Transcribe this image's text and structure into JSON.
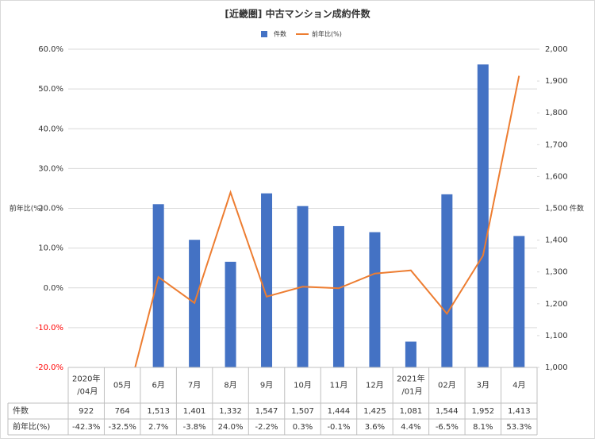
{
  "chart_data": {
    "type": "bar",
    "title": "[近畿圏] 中古マンション成約件数",
    "categories": [
      "2020年\n/04月",
      "05月",
      "6月",
      "7月",
      "8月",
      "9月",
      "10月",
      "11月",
      "12月",
      "2021年\n/01月",
      "02月",
      "3月",
      "4月"
    ],
    "series": [
      {
        "name": "件数",
        "color": "#4472c4",
        "axis": "y2",
        "values": [
          922,
          764,
          1513,
          1401,
          1332,
          1547,
          1507,
          1444,
          1425,
          1081,
          1544,
          1952,
          1413
        ],
        "value_labels": [
          "922",
          "764",
          "1,513",
          "1,401",
          "1,332",
          "1,547",
          "1,507",
          "1,444",
          "1,425",
          "1,081",
          "1,544",
          "1,952",
          "1,413"
        ]
      },
      {
        "name": "前年比(%)",
        "color": "#ed7d31",
        "type": "line",
        "values": [
          -42.3,
          -32.5,
          2.7,
          -3.8,
          24.0,
          -2.2,
          0.3,
          -0.1,
          3.6,
          4.4,
          -6.5,
          8.1,
          53.3
        ],
        "value_labels": [
          "-42.3%",
          "-32.5%",
          "2.7%",
          "-3.8%",
          "24.0%",
          "-2.2%",
          "0.3%",
          "-0.1%",
          "3.6%",
          "4.4%",
          "-6.5%",
          "8.1%",
          "53.3%"
        ]
      }
    ],
    "y_label": "前年比(%)",
    "y2_label": "件数",
    "ylim": [
      -20,
      60
    ],
    "yticks": [
      {
        "value": -20,
        "label": "-20.0%"
      },
      {
        "value": -10,
        "label": "-10.0%"
      },
      {
        "value": 0,
        "label": "0.0%"
      },
      {
        "value": 10,
        "label": "10.0%"
      },
      {
        "value": 20,
        "label": "20.0%"
      },
      {
        "value": 30,
        "label": "30.0%"
      },
      {
        "value": 40,
        "label": "40.0%"
      },
      {
        "value": 50,
        "label": "50.0%"
      },
      {
        "value": 60,
        "label": "60.0%"
      }
    ],
    "y2lim": [
      1000,
      2000
    ],
    "y2ticks": [
      {
        "value": 1000,
        "label": "1,000"
      },
      {
        "value": 1100,
        "label": "1,100"
      },
      {
        "value": 1200,
        "label": "1,200"
      },
      {
        "value": 1300,
        "label": "1,300"
      },
      {
        "value": 1400,
        "label": "1,400"
      },
      {
        "value": 1500,
        "label": "1,500"
      },
      {
        "value": 1600,
        "label": "1,600"
      },
      {
        "value": 1700,
        "label": "1,700"
      },
      {
        "value": 1800,
        "label": "1,800"
      },
      {
        "value": 1900,
        "label": "1,900"
      },
      {
        "value": 2000,
        "label": "2,000"
      }
    ],
    "negative_tick_color": "#ff0000",
    "grid": true,
    "legend": "top",
    "data_table": true
  }
}
